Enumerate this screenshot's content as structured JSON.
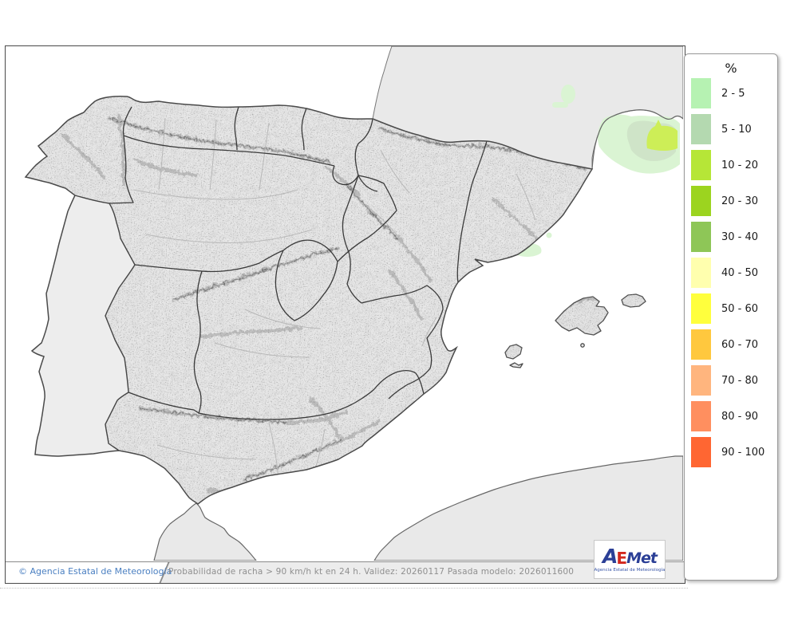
{
  "legend": {
    "title": "%",
    "items": [
      {
        "label": "2 - 5",
        "color": "#b6f2b2"
      },
      {
        "label": "5 - 10",
        "color": "#b4d9b0"
      },
      {
        "label": "10 - 20",
        "color": "#b6e637"
      },
      {
        "label": "20 - 30",
        "color": "#9cd41f"
      },
      {
        "label": "30 - 40",
        "color": "#8ec657"
      },
      {
        "label": "40 - 50",
        "color": "#ffffae"
      },
      {
        "label": "50 - 60",
        "color": "#ffff3d"
      },
      {
        "label": "60 - 70",
        "color": "#ffc83e"
      },
      {
        "label": "70 - 80",
        "color": "#ffb57e"
      },
      {
        "label": "80 - 90",
        "color": "#ff8f5f"
      },
      {
        "label": "90 - 100",
        "color": "#ff6632"
      }
    ]
  },
  "footer": {
    "copyright": "© Agencia Estatal de Meteorología",
    "description": "Probabilidad de racha > 90 km/h kt en 24 h. Validez: 20260117 Pasada modelo: 2026011600"
  },
  "logo": {
    "a": "A",
    "e": "E",
    "met": "Met",
    "caption": "Agencia Estatal de Meteorología"
  },
  "map": {
    "sea_color": "#ffffff",
    "neighbor_land_color": "#e9e9e9",
    "spain_base_color": "#e8e8e8",
    "portugal_color": "#ededed",
    "coast_color": "#4a4a4a",
    "patches": {
      "p2_5": "#daf4d3",
      "p5_10": "#cfe4c8",
      "p10_20": "#cdee57"
    }
  }
}
